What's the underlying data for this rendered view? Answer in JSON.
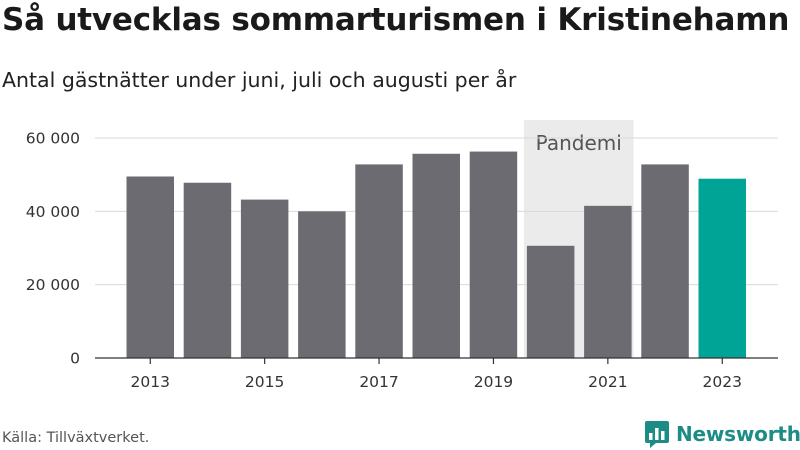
{
  "title": "Så utvecklas sommarturismen i Kristinehamn",
  "subtitle": "Antal gästnätter under juni, juli och augusti per år",
  "source": "Källa: Tillväxtverket.",
  "brand": "Newsworthy",
  "colors": {
    "bar": "#6d6b72",
    "highlight": "#00a497",
    "shade": "#ebebeb",
    "brand": "#1e8c86"
  },
  "chart_data": {
    "type": "bar",
    "categories": [
      "2013",
      "2014",
      "2015",
      "2016",
      "2017",
      "2018",
      "2019",
      "2020",
      "2021",
      "2022",
      "2023"
    ],
    "values": [
      49500,
      47800,
      43200,
      40000,
      52800,
      55700,
      56300,
      30600,
      41500,
      52800,
      48900
    ],
    "highlight": "2023",
    "ylim": [
      0,
      60000
    ],
    "yticks": [
      0,
      20000,
      40000,
      60000
    ],
    "ytick_labels": [
      "0",
      "20 000",
      "40 000",
      "60 000"
    ],
    "xtick_labels": [
      "2013",
      "2015",
      "2017",
      "2019",
      "2021",
      "2023"
    ],
    "annotation": {
      "label": "Pandemi",
      "from": "2020",
      "to": "2021"
    },
    "grid": true
  }
}
